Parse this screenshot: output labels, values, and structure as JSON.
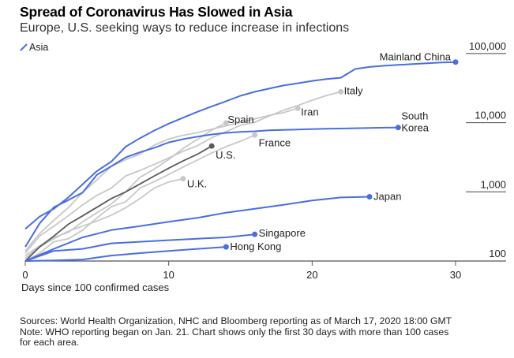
{
  "chart_data": {
    "type": "line",
    "title": "Spread of Coronavirus Has Slowed in Asia",
    "subtitle": "Europe, U.S. seeking ways to reduce increase in infections",
    "xlabel": "Days since 100 confirmed cases",
    "ylabel": "",
    "yscale": "log",
    "xlim": [
      0,
      30
    ],
    "ylim": [
      100,
      100000
    ],
    "x_ticks": [
      0,
      10,
      20,
      30
    ],
    "x_tick_labels": [
      "0",
      "10",
      "20",
      "30"
    ],
    "y_ticks": [
      100,
      1000,
      10000,
      100000
    ],
    "y_tick_labels": [
      "100",
      "1,000",
      "10,000",
      "100,000"
    ],
    "legend": {
      "placement": "top-left",
      "entries": [
        {
          "label": "Asia",
          "color": "#4a6ee0"
        }
      ]
    },
    "colors": {
      "asia": "#4a6ee0",
      "other": "#c8c8c8",
      "us": "#5a5a5a",
      "axis": "#555555"
    },
    "series": [
      {
        "name": "Mainland China",
        "group": "asia",
        "label": "Mainland China",
        "x": [
          0,
          1,
          2,
          3,
          4,
          5,
          6,
          7,
          8,
          9,
          10,
          11,
          12,
          13,
          14,
          15,
          16,
          17,
          18,
          19,
          20,
          21,
          22,
          23,
          24,
          25,
          26,
          27,
          28,
          29,
          30
        ],
        "values": [
          290,
          440,
          570,
          830,
          1290,
          2000,
          2740,
          4500,
          5970,
          7710,
          9690,
          11790,
          14380,
          17200,
          20400,
          24500,
          28000,
          31100,
          34500,
          37200,
          40200,
          42700,
          44700,
          59800,
          64000,
          66500,
          68500,
          70500,
          72400,
          74200,
          75300
        ]
      },
      {
        "name": "Italy",
        "group": "other",
        "label": "Italy",
        "x": [
          0,
          1,
          2,
          3,
          4,
          5,
          6,
          7,
          8,
          9,
          10,
          11,
          12,
          13,
          14,
          15,
          16,
          17,
          18,
          19,
          20,
          21,
          22
        ],
        "values": [
          130,
          230,
          320,
          450,
          650,
          890,
          1130,
          1700,
          2040,
          2500,
          3090,
          3860,
          4640,
          6070,
          7420,
          9170,
          10150,
          12460,
          15110,
          17660,
          21160,
          24750,
          27980
        ]
      },
      {
        "name": "Iran",
        "group": "other",
        "label": "Iran",
        "x": [
          0,
          1,
          2,
          3,
          4,
          5,
          6,
          7,
          8,
          9,
          10,
          11,
          12,
          13,
          14,
          15,
          16,
          17,
          18,
          19
        ],
        "values": [
          140,
          250,
          390,
          590,
          980,
          1500,
          2340,
          2920,
          3510,
          4750,
          5820,
          6570,
          7160,
          8040,
          9000,
          10070,
          11360,
          12730,
          13940,
          16170
        ]
      },
      {
        "name": "Spain",
        "group": "other",
        "label": "Spain",
        "x": [
          0,
          1,
          2,
          3,
          4,
          5,
          6,
          7,
          8,
          9,
          10,
          11,
          12,
          13,
          14
        ],
        "values": [
          120,
          165,
          220,
          260,
          370,
          500,
          670,
          1000,
          1620,
          2140,
          2950,
          4230,
          5750,
          7800,
          9940
        ]
      },
      {
        "name": "South Korea",
        "group": "asia",
        "label": "South Korea",
        "x": [
          0,
          1,
          2,
          3,
          4,
          5,
          6,
          7,
          8,
          9,
          10,
          11,
          12,
          13,
          14,
          15,
          16,
          17,
          18,
          19,
          20,
          21,
          22,
          23,
          24,
          25,
          26
        ],
        "values": [
          160,
          350,
          600,
          760,
          980,
          1770,
          2340,
          3150,
          3740,
          4340,
          5190,
          5770,
          6280,
          6770,
          7130,
          7380,
          7510,
          7760,
          7870,
          7980,
          8090,
          8160,
          8240,
          8320,
          8410,
          8470,
          8520
        ]
      },
      {
        "name": "France",
        "group": "other",
        "label": "France",
        "x": [
          0,
          1,
          2,
          3,
          4,
          5,
          6,
          7,
          8,
          9,
          10,
          11,
          12,
          13,
          14,
          15,
          16
        ],
        "values": [
          100,
          130,
          190,
          210,
          280,
          420,
          610,
          720,
          1130,
          1410,
          1780,
          2280,
          2880,
          3660,
          4500,
          5400,
          6630
        ]
      },
      {
        "name": "U.S.",
        "group": "us",
        "label": "U.S.",
        "x": [
          0,
          1,
          2,
          3,
          4,
          5,
          6,
          7,
          8,
          9,
          10,
          11,
          12,
          13
        ],
        "values": [
          100,
          160,
          230,
          340,
          450,
          600,
          800,
          1000,
          1300,
          1700,
          2200,
          2800,
          3500,
          4600
        ]
      },
      {
        "name": "U.K.",
        "group": "other",
        "label": "U.K.",
        "x": [
          0,
          1,
          2,
          3,
          4,
          5,
          6,
          7,
          8,
          9,
          10,
          11
        ],
        "values": [
          110,
          160,
          210,
          270,
          320,
          380,
          460,
          590,
          800,
          1140,
          1390,
          1550
        ]
      },
      {
        "name": "Japan",
        "group": "asia",
        "label": "Japan",
        "x": [
          0,
          2,
          4,
          6,
          8,
          10,
          12,
          14,
          16,
          18,
          20,
          22,
          24
        ],
        "values": [
          100,
          150,
          220,
          280,
          320,
          370,
          420,
          500,
          570,
          650,
          750,
          830,
          850
        ]
      },
      {
        "name": "Singapore",
        "group": "asia",
        "label": "Singapore",
        "x": [
          0,
          2,
          4,
          6,
          8,
          10,
          12,
          14,
          16
        ],
        "values": [
          100,
          140,
          150,
          180,
          190,
          200,
          210,
          220,
          243
        ]
      },
      {
        "name": "Hong Kong",
        "group": "asia",
        "label": "Hong Kong",
        "x": [
          0,
          2,
          4,
          6,
          8,
          10,
          12,
          14
        ],
        "values": [
          100,
          102,
          105,
          120,
          130,
          140,
          150,
          160
        ]
      }
    ],
    "source": "Sources: World Health Organization, NHC and Bloomberg reporting as of March 17, 2020 18:00 GMT",
    "note_line1": "Note: WHO reporting began on Jan. 21. Chart shows only the first 30 days with more than 100 cases",
    "note_line2": "for each area."
  }
}
